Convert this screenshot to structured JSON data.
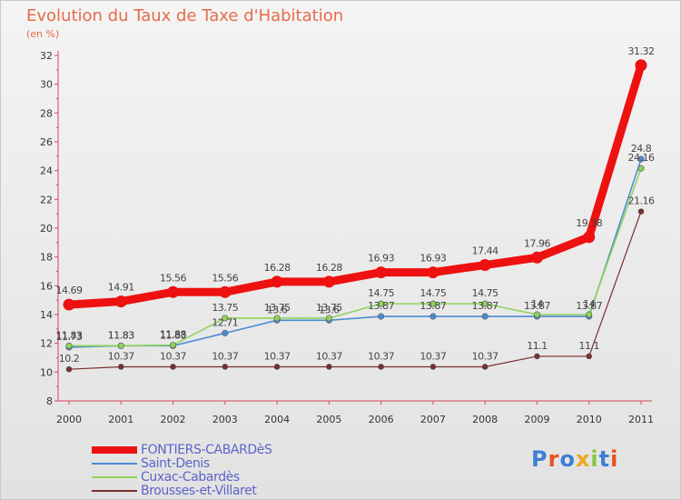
{
  "header": {
    "title": "Evolution du Taux de Taxe d'Habitation",
    "unit": "(en %)"
  },
  "logo": {
    "text": "Proxiti",
    "colors": [
      "#3d7fd4",
      "#e8531f",
      "#3d7fd4",
      "#f2a71b",
      "#8bc53f",
      "#3d7fd4",
      "#e8531f"
    ]
  },
  "chart_data": {
    "type": "line",
    "title": "Evolution du Taux de Taxe d'Habitation",
    "subtitle": "(en %)",
    "xlabel": "",
    "ylabel": "",
    "x": [
      "2000",
      "2001",
      "2002",
      "2003",
      "2004",
      "2005",
      "2006",
      "2007",
      "2008",
      "2009",
      "2010",
      "2011"
    ],
    "ylim": [
      8,
      32
    ],
    "yticks": [
      "8",
      "10",
      "12",
      "14",
      "16",
      "18",
      "20",
      "22",
      "24",
      "26",
      "28",
      "30",
      "32"
    ],
    "grid": false,
    "legend_position": "bottom-left",
    "series": [
      {
        "name": "FONTIERS-CABARDèS",
        "color": "#ee1111",
        "values": [
          14.69,
          14.91,
          15.56,
          15.56,
          16.28,
          16.28,
          16.93,
          16.93,
          17.44,
          17.96,
          19.38,
          31.32
        ],
        "labels": [
          "14.69",
          "14.91",
          "15.56",
          "15.56",
          "16.28",
          "16.28",
          "16.93",
          "16.93",
          "17.44",
          "17.96",
          "19.38",
          "31.32"
        ]
      },
      {
        "name": "Saint-Denis",
        "color": "#4b8cd4",
        "values": [
          11.73,
          11.83,
          11.83,
          12.71,
          13.6,
          13.6,
          13.87,
          13.87,
          13.87,
          13.87,
          13.87,
          24.8
        ],
        "labels": [
          "11.73",
          "11.83",
          "11.83",
          "12.71",
          "13.6",
          "13.6",
          "13.87",
          "13.87",
          "13.87",
          "13.87",
          "13.87",
          "24.8"
        ]
      },
      {
        "name": "Cuxac-Cabardès",
        "color": "#8fd45a",
        "values": [
          11.83,
          11.83,
          11.88,
          13.75,
          13.75,
          13.75,
          14.75,
          14.75,
          14.75,
          14,
          14,
          24.16
        ],
        "labels": [
          "11.83",
          "11.83",
          "11.88",
          "13.75",
          "13.75",
          "13.75",
          "14.75",
          "14.75",
          "14.75",
          "14",
          "14",
          "24.16"
        ]
      },
      {
        "name": "Brousses-et-Villaret",
        "color": "#7a2e2e",
        "values": [
          10.2,
          10.37,
          10.37,
          10.37,
          10.37,
          10.37,
          10.37,
          10.37,
          10.37,
          11.1,
          11.1,
          21.16
        ],
        "labels": [
          "10.2",
          "10.37",
          "10.37",
          "10.37",
          "10.37",
          "10.37",
          "10.37",
          "10.37",
          "10.37",
          "11.1",
          "11.1",
          "21.16"
        ]
      }
    ]
  }
}
